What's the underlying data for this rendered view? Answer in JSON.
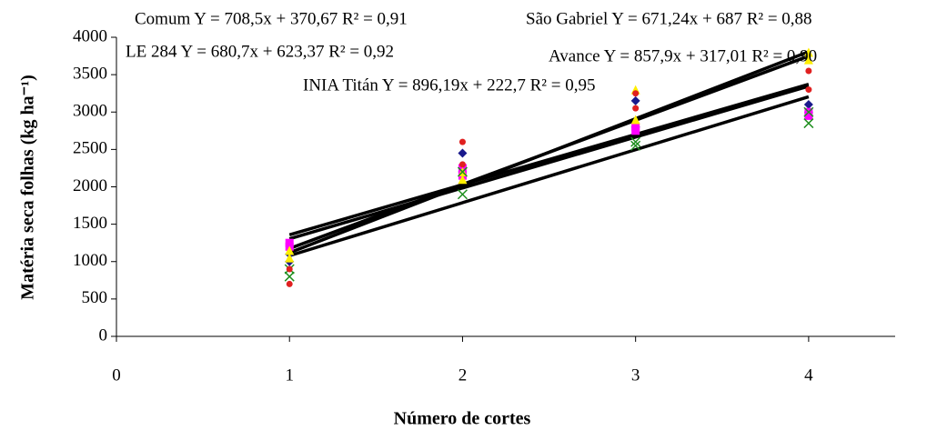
{
  "chart_data": {
    "type": "scatter",
    "x_label": "Número de cortes",
    "y_label": "Matéria seca folhas (kg ha⁻¹)",
    "xlim": [
      0,
      4.5
    ],
    "xticks": [
      0,
      1,
      2,
      3,
      4
    ],
    "ylim": [
      0,
      4000
    ],
    "yticks": [
      0,
      500,
      1000,
      1500,
      2000,
      2500,
      3000,
      3500,
      4000
    ],
    "series": [
      {
        "name": "Comum",
        "color": "#1a1a8c",
        "marker": "diamond",
        "x": [
          1,
          1,
          2,
          2,
          3,
          3,
          4,
          4
        ],
        "values": [
          1100,
          1000,
          2450,
          2200,
          3150,
          2800,
          3100,
          3000
        ],
        "trendline": {
          "slope": 708.5,
          "intercept": 370.67
        },
        "annotation": "Comum Y = 708,5x + 370,67 R² = 0,91"
      },
      {
        "name": "LE 284",
        "color": "#ff00ff",
        "marker": "square",
        "x": [
          1,
          1,
          2,
          2,
          3,
          3,
          4,
          4
        ],
        "values": [
          1250,
          1200,
          2250,
          2150,
          2800,
          2750,
          3000,
          2950
        ],
        "trendline": {
          "slope": 680.7,
          "intercept": 623.37
        },
        "annotation": "LE 284 Y = 680,7x + 623,37 R² = 0,92"
      },
      {
        "name": "São Gabriel",
        "color": "#ffee00",
        "marker": "triangle",
        "x": [
          1,
          1,
          2,
          2,
          3,
          3,
          4,
          4
        ],
        "values": [
          1150,
          1050,
          2200,
          2100,
          3300,
          2900,
          3800,
          3700
        ],
        "trendline": {
          "slope": 671.24,
          "intercept": 687
        },
        "annotation": "São Gabriel Y = 671,24x + 687 R² = 0,88"
      },
      {
        "name": "Avance",
        "color": "#1f8f1f",
        "marker": "cross",
        "x": [
          1,
          1,
          2,
          2,
          3,
          3,
          4,
          4
        ],
        "values": [
          900,
          800,
          2200,
          1900,
          2600,
          2550,
          3000,
          2850
        ],
        "trendline": {
          "slope": 857.9,
          "intercept": 317.01
        },
        "annotation": "Avance Y = 857,9x + 317,01 R² = 0,90"
      },
      {
        "name": "INIA Titán",
        "color": "#e02020",
        "marker": "circle",
        "x": [
          1,
          1,
          2,
          2,
          3,
          3,
          4,
          4
        ],
        "values": [
          700,
          900,
          2600,
          2300,
          3250,
          3050,
          3550,
          3300
        ],
        "trendline": {
          "slope": 896.19,
          "intercept": 222.7
        },
        "annotation": "INIA Titán Y = 896,19x + 222,7 R² = 0,95"
      }
    ]
  }
}
